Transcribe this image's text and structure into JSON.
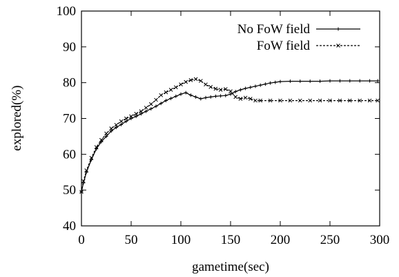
{
  "chart_data": {
    "type": "line",
    "title": "",
    "xlabel": "gametime(sec)",
    "ylabel": "explored(%)",
    "xlim": [
      0,
      300
    ],
    "ylim": [
      40,
      100
    ],
    "xticks": [
      0,
      50,
      100,
      150,
      200,
      250,
      300
    ],
    "yticks": [
      40,
      50,
      60,
      70,
      80,
      90,
      100
    ],
    "grid": false,
    "legend_position": "top-right",
    "colors": {
      "axis": "#000000",
      "series": "#000000",
      "background": "#ffffff"
    },
    "series": [
      {
        "name": "No FoW field",
        "marker": "plus",
        "dash": "solid",
        "x": [
          0,
          2,
          5,
          10,
          15,
          20,
          25,
          30,
          35,
          40,
          45,
          50,
          55,
          60,
          65,
          70,
          75,
          80,
          85,
          90,
          95,
          100,
          105,
          110,
          115,
          120,
          125,
          130,
          135,
          140,
          145,
          150,
          155,
          160,
          165,
          170,
          175,
          180,
          185,
          190,
          195,
          200,
          210,
          220,
          230,
          240,
          250,
          260,
          270,
          280,
          290,
          298
        ],
        "y": [
          49.5,
          52,
          55,
          58.5,
          61.5,
          63.5,
          65,
          66.5,
          67.5,
          68.3,
          69.2,
          70,
          70.6,
          71.3,
          72,
          72.7,
          73.4,
          74.2,
          75,
          75.6,
          76.2,
          76.8,
          77.2,
          76.5,
          76,
          75.5,
          75.8,
          76,
          76.2,
          76.3,
          76.4,
          76.8,
          77.5,
          78,
          78.4,
          78.7,
          79,
          79.3,
          79.6,
          79.9,
          80.1,
          80.3,
          80.4,
          80.4,
          80.4,
          80.4,
          80.5,
          80.5,
          80.5,
          80.5,
          80.5,
          80.5
        ]
      },
      {
        "name": "FoW field",
        "marker": "cross",
        "dash": "dashed",
        "x": [
          0,
          2,
          5,
          10,
          15,
          20,
          25,
          30,
          35,
          40,
          45,
          50,
          55,
          60,
          65,
          70,
          75,
          80,
          85,
          90,
          95,
          100,
          105,
          110,
          115,
          120,
          125,
          130,
          135,
          140,
          145,
          150,
          155,
          160,
          165,
          170,
          175,
          180,
          190,
          200,
          210,
          220,
          230,
          240,
          250,
          260,
          270,
          280,
          290,
          298
        ],
        "y": [
          49.5,
          52.5,
          55.5,
          59,
          62,
          64,
          65.8,
          67.2,
          68.2,
          69.2,
          70,
          70.6,
          71.3,
          72,
          73,
          74,
          75.2,
          76.5,
          77.3,
          78,
          78.7,
          79.5,
          80.2,
          80.7,
          81,
          80.5,
          79.5,
          78.8,
          78.3,
          78,
          78.2,
          77.6,
          76,
          75.5,
          75.8,
          75.5,
          75,
          75,
          75,
          75,
          75,
          75,
          75,
          75,
          75,
          75,
          75,
          75,
          75,
          75
        ]
      }
    ]
  }
}
